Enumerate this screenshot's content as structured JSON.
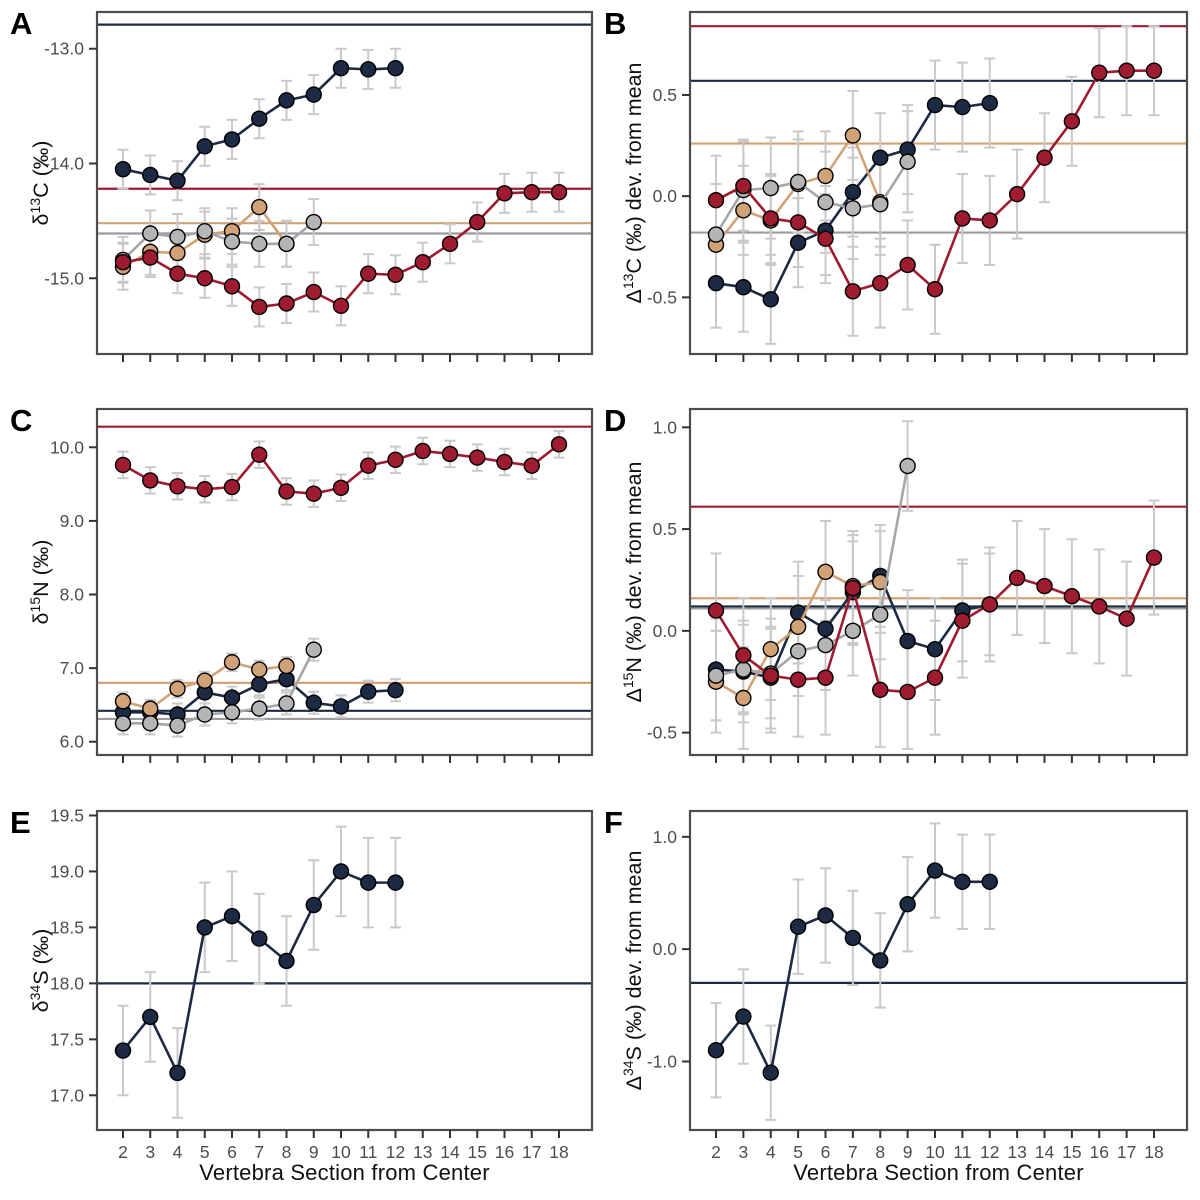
{
  "chart_data": {
    "type": "line",
    "x_axis_title": "Vertebra Section from Center",
    "x_tick_labels": [
      "2",
      "3",
      "4",
      "5",
      "6",
      "7",
      "8",
      "9",
      "10",
      "11",
      "12",
      "13",
      "14",
      "15",
      "16",
      "17",
      "18"
    ],
    "x_values": [
      2,
      3,
      4,
      5,
      6,
      7,
      8,
      9,
      10,
      11,
      12,
      13,
      14,
      15,
      16,
      17,
      18
    ],
    "legend": "none",
    "grid": "off",
    "colors": {
      "navy": "#1c2a43",
      "red": "#9e1b30",
      "tan": "#d0a276",
      "gray": "#b5b5b5",
      "gray_line": "#a6a6a6",
      "gray_ref": "#9b9b9b",
      "error_bar": "#c9c9c9",
      "border": "#4d4d4d",
      "tick_mark": "#333333",
      "tick_label": "#4d4d4d",
      "axis_title": "#111111",
      "panel_letter": "#000000"
    },
    "panels": [
      {
        "letter": "A",
        "y_label": {
          "sym": "δ",
          "sup": "13",
          "rest": "C (‰)"
        },
        "ylim": [
          -15.66,
          -12.68
        ],
        "yticks": [
          {
            "label": "-13.0",
            "v": -13.0
          },
          {
            "label": "-14.0",
            "v": -14.0
          },
          {
            "label": "-15.0",
            "v": -15.0
          }
        ],
        "ref_lines": [
          {
            "c": "navy",
            "v": -12.79
          },
          {
            "c": "red",
            "v": -14.22
          },
          {
            "c": "tan",
            "v": -14.52
          },
          {
            "c": "gray",
            "v": -14.61
          }
        ],
        "series": [
          {
            "c": "navy",
            "x0": 2,
            "err": 0.17,
            "v": [
              -14.05,
              -14.1,
              -14.15,
              -13.85,
              -13.79,
              -13.61,
              -13.45,
              -13.4,
              -13.17,
              -13.18,
              -13.17
            ]
          },
          {
            "c": "tan",
            "x0": 2,
            "err": 0.2,
            "v": [
              -14.9,
              -14.77,
              -14.78,
              -14.62,
              -14.59,
              -14.38,
              -14.7
            ]
          },
          {
            "c": "gray",
            "x0": 2,
            "err": 0.2,
            "v": [
              -14.84,
              -14.61,
              -14.64,
              -14.59,
              -14.68,
              -14.7,
              -14.7,
              -14.51
            ]
          },
          {
            "c": "red",
            "x0": 2,
            "err": 0.17,
            "v": [
              -14.86,
              -14.82,
              -14.96,
              -15.0,
              -15.07,
              -15.25,
              -15.22,
              -15.12,
              -15.24,
              -14.96,
              -14.97,
              -14.86,
              -14.7,
              -14.51,
              -14.26,
              -14.25,
              -14.25
            ]
          }
        ]
      },
      {
        "letter": "B",
        "y_label": {
          "sym": "Δ",
          "sup": "13",
          "rest": "C  (‰) dev. from mean"
        },
        "ylim": [
          -0.78,
          0.91
        ],
        "yticks": [
          {
            "label": "0.5",
            "v": 0.5
          },
          {
            "label": "0.0",
            "v": 0.0
          },
          {
            "label": "-0.5",
            "v": -0.5
          }
        ],
        "ref_lines": [
          {
            "c": "red",
            "v": 0.84
          },
          {
            "c": "navy",
            "v": 0.57
          },
          {
            "c": "tan",
            "v": 0.26
          },
          {
            "c": "gray",
            "v": -0.18
          }
        ],
        "series": [
          {
            "c": "navy",
            "x0": 2,
            "err": 0.22,
            "v": [
              -0.43,
              -0.45,
              -0.51,
              -0.23,
              -0.17,
              0.02,
              0.19,
              0.23,
              0.45,
              0.44,
              0.46
            ]
          },
          {
            "c": "tan",
            "x0": 2,
            "err": 0.22,
            "v": [
              -0.24,
              -0.07,
              -0.12,
              0.06,
              0.1,
              0.3,
              -0.03
            ]
          },
          {
            "c": "gray",
            "x0": 2,
            "err": 0.25,
            "v": [
              -0.19,
              0.03,
              0.04,
              0.07,
              -0.03,
              -0.06,
              -0.04,
              0.17
            ]
          },
          {
            "c": "red",
            "x0": 2,
            "err": 0.22,
            "v": [
              -0.02,
              0.05,
              -0.11,
              -0.13,
              -0.21,
              -0.47,
              -0.43,
              -0.34,
              -0.46,
              -0.11,
              -0.12,
              0.01,
              0.19,
              0.37,
              0.61,
              0.62,
              0.62
            ]
          }
        ]
      },
      {
        "letter": "C",
        "y_label": {
          "sym": "δ",
          "sup": "15",
          "rest": "N (‰)"
        },
        "ylim": [
          5.82,
          10.52
        ],
        "yticks": [
          {
            "label": "10.0",
            "v": 10.0
          },
          {
            "label": "9.0",
            "v": 9.0
          },
          {
            "label": "8.0",
            "v": 8.0
          },
          {
            "label": "7.0",
            "v": 7.0
          },
          {
            "label": "6.0",
            "v": 6.0
          }
        ],
        "ref_lines": [
          {
            "c": "red",
            "v": 10.28
          },
          {
            "c": "tan",
            "v": 6.8
          },
          {
            "c": "navy",
            "v": 6.42
          },
          {
            "c": "gray",
            "v": 6.31
          }
        ],
        "series": [
          {
            "c": "navy",
            "x0": 2,
            "err": 0.15,
            "v": [
              6.4,
              6.4,
              6.37,
              6.67,
              6.6,
              6.78,
              6.85,
              6.53,
              6.48,
              6.68,
              6.7
            ]
          },
          {
            "c": "tan",
            "x0": 2,
            "err": 0.12,
            "v": [
              6.55,
              6.45,
              6.72,
              6.83,
              7.08,
              6.98,
              7.03
            ]
          },
          {
            "c": "gray",
            "x0": 2,
            "err": 0.15,
            "v": [
              6.25,
              6.25,
              6.22,
              6.37,
              6.4,
              6.45,
              6.52,
              7.25
            ]
          },
          {
            "c": "red",
            "x0": 2,
            "err": 0.18,
            "v": [
              9.76,
              9.55,
              9.47,
              9.43,
              9.46,
              9.9,
              9.4,
              9.37,
              9.45,
              9.75,
              9.83,
              9.95,
              9.91,
              9.86,
              9.8,
              9.75,
              10.04
            ]
          }
        ]
      },
      {
        "letter": "D",
        "y_label": {
          "sym": "Δ",
          "sup": "15",
          "rest": "N (‰) dev. from mean"
        },
        "ylim": [
          -0.61,
          1.09
        ],
        "yticks": [
          {
            "label": "1.0",
            "v": 1.0
          },
          {
            "label": "0.5",
            "v": 0.5
          },
          {
            "label": "0.0",
            "v": 0.0
          },
          {
            "label": "-0.5",
            "v": -0.5
          }
        ],
        "ref_lines": [
          {
            "c": "red",
            "v": 0.61
          },
          {
            "c": "tan",
            "v": 0.16
          },
          {
            "c": "navy",
            "v": 0.12
          },
          {
            "c": "gray",
            "v": 0.11
          }
        ],
        "series": [
          {
            "c": "navy",
            "x0": 2,
            "err": 0.25,
            "v": [
              -0.19,
              -0.2,
              -0.23,
              0.09,
              0.01,
              0.19,
              0.27,
              -0.05,
              -0.09,
              0.1,
              0.13
            ]
          },
          {
            "c": "tan",
            "x0": 2,
            "err": 0.25,
            "v": [
              -0.25,
              -0.33,
              -0.09,
              0.02,
              0.29,
              0.22,
              0.24
            ]
          },
          {
            "c": "gray",
            "x0": 2,
            "err": 0.22,
            "v": [
              -0.22,
              -0.19,
              -0.21,
              -0.1,
              -0.07,
              0.0,
              0.08,
              0.81
            ]
          },
          {
            "c": "red",
            "x0": 2,
            "err": 0.28,
            "v": [
              0.1,
              -0.12,
              -0.22,
              -0.24,
              -0.23,
              0.21,
              -0.29,
              -0.3,
              -0.23,
              0.05,
              0.13,
              0.26,
              0.22,
              0.17,
              0.12,
              0.06,
              0.36
            ]
          }
        ]
      },
      {
        "letter": "E",
        "y_label": {
          "sym": "δ",
          "sup": "34",
          "rest": "S (‰)"
        },
        "ylim": [
          16.69,
          19.54
        ],
        "yticks": [
          {
            "label": "19.5",
            "v": 19.5
          },
          {
            "label": "19.0",
            "v": 19.0
          },
          {
            "label": "18.5",
            "v": 18.5
          },
          {
            "label": "18.0",
            "v": 18.0
          },
          {
            "label": "17.5",
            "v": 17.5
          },
          {
            "label": "17.0",
            "v": 17.0
          }
        ],
        "ref_lines": [
          {
            "c": "navy",
            "v": 18.0
          }
        ],
        "series": [
          {
            "c": "navy",
            "x0": 2,
            "err": 0.4,
            "v": [
              17.4,
              17.7,
              17.2,
              18.5,
              18.6,
              18.4,
              18.2,
              18.7,
              19.0,
              18.9,
              18.9
            ]
          }
        ]
      },
      {
        "letter": "F",
        "y_label": {
          "sym": "Δ",
          "sup": "34",
          "rest": "S  (‰) dev. from mean"
        },
        "ylim": [
          -1.61,
          1.23
        ],
        "yticks": [
          {
            "label": "1.0",
            "v": 1.0
          },
          {
            "label": "0.0",
            "v": 0.0
          },
          {
            "label": "-1.0",
            "v": -1.0
          }
        ],
        "ref_lines": [
          {
            "c": "navy",
            "v": -0.3
          }
        ],
        "series": [
          {
            "c": "navy",
            "x0": 2,
            "err": 0.42,
            "v": [
              -0.9,
              -0.6,
              -1.1,
              0.2,
              0.3,
              0.1,
              -0.1,
              0.4,
              0.7,
              0.6,
              0.6
            ]
          }
        ]
      }
    ]
  }
}
